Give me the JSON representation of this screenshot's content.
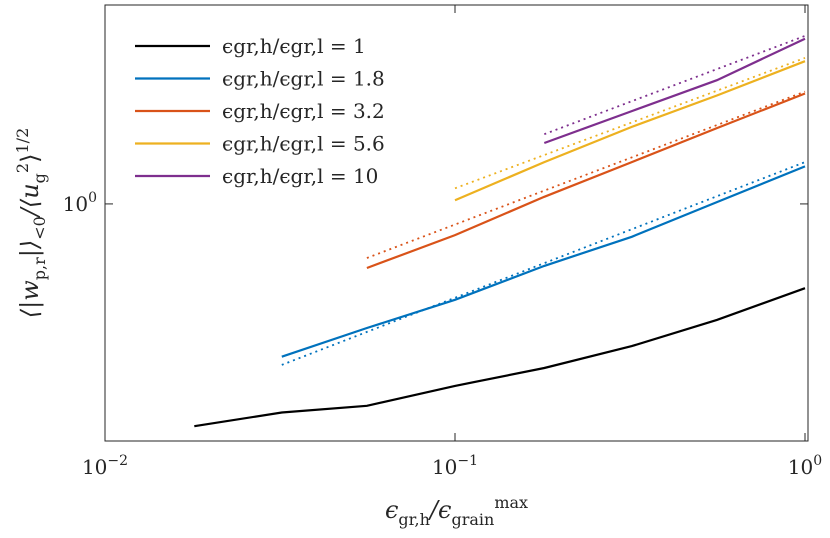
{
  "chart_data": {
    "type": "line",
    "xscale": "log",
    "yscale": "log",
    "xlim": [
      0.01,
      1.02
    ],
    "ylim": [
      0.27,
      3.0
    ],
    "xticks": [
      {
        "value": 0.01,
        "label": "10",
        "power": "−2"
      },
      {
        "value": 0.1,
        "label": "10",
        "power": "−1"
      },
      {
        "value": 1,
        "label": "10",
        "power": "0"
      }
    ],
    "yticks": [
      {
        "value": 1,
        "label": "10",
        "power": "0"
      }
    ],
    "xlabel": [
      {
        "text": "ϵ"
      },
      {
        "text": "gr,h",
        "shift": "sub"
      },
      {
        "text": "/ϵ"
      },
      {
        "text": "grain",
        "shift": "sub"
      },
      {
        "text": "max",
        "shift": "sup"
      }
    ],
    "ylabel": [
      {
        "text": "⟨|w"
      },
      {
        "text": "p,r",
        "shift": "sub"
      },
      {
        "text": "|⟩"
      },
      {
        "text": "<0",
        "shift": "sub"
      },
      {
        "text": "/⟨u"
      },
      {
        "text": "g",
        "shift": "sub"
      },
      {
        "text": "2",
        "shift": "sup"
      },
      {
        "text": "⟩"
      },
      {
        "text": "1/2",
        "shift": "sup"
      }
    ],
    "legend": "upper left",
    "series": [
      {
        "name": "ϵgr,h/ϵgr,l = 1",
        "color": "#000000",
        "x": [
          0.018,
          0.032,
          0.056,
          0.1,
          0.18,
          0.32,
          0.56,
          1
        ],
        "values": [
          0.293,
          0.316,
          0.328,
          0.366,
          0.404,
          0.456,
          0.527,
          0.628
        ]
      },
      {
        "name": "ϵgr,h/ϵgr,l = 1.8",
        "color": "#0072bd",
        "x": [
          0.032,
          0.056,
          0.1,
          0.18,
          0.32,
          0.56,
          1
        ],
        "values": [
          0.43,
          0.504,
          0.589,
          0.71,
          0.834,
          1.01,
          1.23
        ]
      },
      {
        "name": "ϵgr,h/ϵgr,l = 3.2",
        "color": "#d95319",
        "x": [
          0.056,
          0.1,
          0.18,
          0.32,
          0.56,
          1
        ],
        "values": [
          0.702,
          0.842,
          1.04,
          1.26,
          1.52,
          1.84
        ]
      },
      {
        "name": "ϵgr,h/ϵgr,l = 5.6",
        "color": "#edb120",
        "x": [
          0.1,
          0.18,
          0.32,
          0.56,
          1
        ],
        "values": [
          1.02,
          1.26,
          1.53,
          1.82,
          2.2
        ]
      },
      {
        "name": "ϵgr,h/ϵgr,l = 10",
        "color": "#7e2f8e",
        "x": [
          0.18,
          0.32,
          0.56,
          1
        ],
        "values": [
          1.4,
          1.67,
          1.98,
          2.49
        ]
      },
      {
        "color": "#0072bd",
        "dash": "dotted",
        "x": [
          0.032,
          1
        ],
        "values": [
          0.411,
          1.26
        ]
      },
      {
        "color": "#d95319",
        "dash": "dotted",
        "x": [
          0.056,
          1
        ],
        "values": [
          0.742,
          1.86
        ]
      },
      {
        "color": "#edb120",
        "dash": "dotted",
        "x": [
          0.1,
          1
        ],
        "values": [
          1.09,
          2.24
        ]
      },
      {
        "color": "#7e2f8e",
        "dash": "dotted",
        "x": [
          0.18,
          1
        ],
        "values": [
          1.47,
          2.53
        ]
      }
    ]
  }
}
